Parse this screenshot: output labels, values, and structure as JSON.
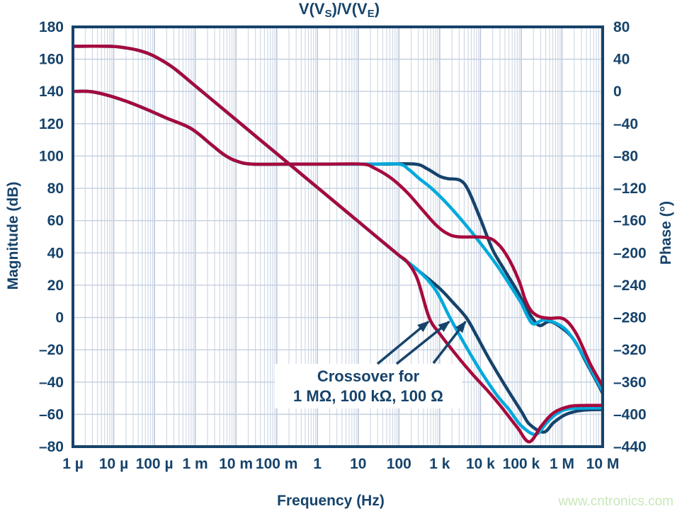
{
  "title": {
    "segments": [
      {
        "text": "V(V"
      },
      {
        "text": "S",
        "sub": true
      },
      {
        "text": ")/V(V"
      },
      {
        "text": "E",
        "sub": true
      },
      {
        "text": ")"
      }
    ]
  },
  "watermark": "www.cntronics.com",
  "colors": {
    "navy": "#16436B",
    "cyan": "#00A9DB",
    "crimson": "#A60A3D",
    "text": "#16436B",
    "grid_minor": "#CDD6E4",
    "grid_major": "#B9C6D9",
    "grid_horizontal": "#C4CFE0",
    "background": "#FFFFFF",
    "watermark_green": "#C9E7B9"
  },
  "axes": {
    "x": {
      "label": "Frequency (Hz)",
      "scale": "log",
      "log_range": [
        -6,
        7
      ],
      "ticks": [
        "1 µ",
        "10 µ",
        "100 µ",
        "1 m",
        "10 m",
        "100 m",
        "1",
        "10",
        "100",
        "1 k",
        "10 k",
        "100 k",
        "1 M",
        "10 M"
      ]
    },
    "y_left": {
      "label": "Magnitude (dB)",
      "range": [
        -80,
        180
      ],
      "step": 20,
      "ticks": [
        "180",
        "160",
        "140",
        "120",
        "100",
        "80",
        "60",
        "40",
        "20",
        "0",
        "–20",
        "–40",
        "–60",
        "–80"
      ]
    },
    "y_right": {
      "label": "Phase (°)",
      "range": [
        -440,
        80
      ],
      "step": 40,
      "ticks": [
        "80",
        "40",
        "0",
        "–40",
        "–80",
        "–120",
        "–160",
        "–200",
        "–240",
        "–280",
        "–320",
        "–360",
        "–400",
        "–440"
      ]
    }
  },
  "annotation": {
    "lines": [
      "Crossover for",
      "1 MΩ, 100 kΩ, 100 Ω"
    ]
  },
  "chart_data": {
    "type": "line",
    "title": "V(VS)/V(VE)",
    "x_unit": "log10 of frequency in Hz",
    "grid": true,
    "legend": false,
    "series": [
      {
        "name": "magnitude 100 Ω",
        "axis": "left",
        "color": "navy",
        "points": [
          [
            -6,
            168
          ],
          [
            -5.1,
            168
          ],
          [
            -4.7,
            167
          ],
          [
            -4.4,
            165.5
          ],
          [
            -4.1,
            163
          ],
          [
            -3.8,
            159
          ],
          [
            -3.5,
            154
          ],
          [
            -3,
            143.5
          ],
          [
            -2.5,
            133
          ],
          [
            -2,
            122.5
          ],
          [
            -1.5,
            112
          ],
          [
            -1,
            101.5
          ],
          [
            -0.5,
            91
          ],
          [
            0,
            80.5
          ],
          [
            0.5,
            70
          ],
          [
            1,
            59.5
          ],
          [
            1.5,
            49
          ],
          [
            2,
            38.5
          ],
          [
            2.5,
            28.5
          ],
          [
            3,
            18
          ],
          [
            3.3,
            10
          ],
          [
            3.65,
            0
          ],
          [
            3.9,
            -11
          ],
          [
            4.2,
            -25
          ],
          [
            4.6,
            -42
          ],
          [
            5,
            -58
          ],
          [
            5.2,
            -66
          ],
          [
            5.55,
            -71
          ],
          [
            5.8,
            -65
          ],
          [
            6.1,
            -60
          ],
          [
            6.5,
            -57.5
          ],
          [
            7,
            -57
          ]
        ]
      },
      {
        "name": "magnitude 100 kΩ",
        "axis": "left",
        "color": "cyan",
        "points": [
          [
            -6,
            168
          ],
          [
            -5.1,
            168
          ],
          [
            -4.7,
            167
          ],
          [
            -4.4,
            165.5
          ],
          [
            -4.1,
            163
          ],
          [
            -3.8,
            159
          ],
          [
            -3.5,
            154
          ],
          [
            -3,
            143.5
          ],
          [
            -2.5,
            133
          ],
          [
            -2,
            122.5
          ],
          [
            -1.5,
            112
          ],
          [
            -1,
            101.5
          ],
          [
            -0.5,
            91
          ],
          [
            0,
            80.5
          ],
          [
            0.5,
            70
          ],
          [
            1,
            59.5
          ],
          [
            1.5,
            49
          ],
          [
            2,
            38.5
          ],
          [
            2.5,
            28.5
          ],
          [
            2.9,
            17
          ],
          [
            3.25,
            0
          ],
          [
            3.6,
            -16
          ],
          [
            4,
            -33
          ],
          [
            4.4,
            -48
          ],
          [
            4.7,
            -57
          ],
          [
            5,
            -67
          ],
          [
            5.35,
            -72.5
          ],
          [
            5.6,
            -66
          ],
          [
            5.85,
            -60
          ],
          [
            6.2,
            -56.5
          ],
          [
            7,
            -56
          ]
        ]
      },
      {
        "name": "magnitude 1 MΩ",
        "axis": "left",
        "color": "crimson",
        "points": [
          [
            -6,
            168
          ],
          [
            -5.1,
            168
          ],
          [
            -4.7,
            167
          ],
          [
            -4.4,
            165.5
          ],
          [
            -4.1,
            163
          ],
          [
            -3.8,
            159
          ],
          [
            -3.5,
            154
          ],
          [
            -3,
            143.5
          ],
          [
            -2.5,
            133
          ],
          [
            -2,
            122.5
          ],
          [
            -1.5,
            112
          ],
          [
            -1,
            101.5
          ],
          [
            -0.5,
            91
          ],
          [
            0,
            80.5
          ],
          [
            0.5,
            70
          ],
          [
            1,
            59.5
          ],
          [
            1.5,
            49
          ],
          [
            2,
            38.5
          ],
          [
            2.2,
            34.5
          ],
          [
            2.45,
            24
          ],
          [
            2.74,
            0
          ],
          [
            3,
            -10
          ],
          [
            3.4,
            -23
          ],
          [
            3.8,
            -35
          ],
          [
            4.2,
            -46
          ],
          [
            4.5,
            -55
          ],
          [
            4.9,
            -68
          ],
          [
            5.2,
            -77
          ],
          [
            5.5,
            -67
          ],
          [
            5.8,
            -59
          ],
          [
            6.2,
            -55
          ],
          [
            6.6,
            -54.5
          ],
          [
            7,
            -54.5
          ]
        ]
      },
      {
        "name": "phase 100 Ω",
        "axis": "right",
        "color": "navy",
        "points": [
          [
            -6,
            0
          ],
          [
            -5.6,
            0
          ],
          [
            -5.2,
            -4
          ],
          [
            -4.7,
            -12
          ],
          [
            -4.2,
            -22
          ],
          [
            -3.7,
            -33
          ],
          [
            -3.1,
            -46
          ],
          [
            -2.6,
            -66
          ],
          [
            -2.3,
            -78
          ],
          [
            -2,
            -86
          ],
          [
            -1.6,
            -90
          ],
          [
            -0.5,
            -90
          ],
          [
            0.8,
            -90
          ],
          [
            1.6,
            -90
          ],
          [
            2.4,
            -90
          ],
          [
            2.7,
            -96
          ],
          [
            3,
            -105
          ],
          [
            3.2,
            -108
          ],
          [
            3.5,
            -110
          ],
          [
            3.7,
            -122
          ],
          [
            4,
            -158
          ],
          [
            4.3,
            -196
          ],
          [
            4.6,
            -222
          ],
          [
            4.9,
            -247
          ],
          [
            5.1,
            -266
          ],
          [
            5.25,
            -279
          ],
          [
            5.45,
            -290
          ],
          [
            5.7,
            -285
          ],
          [
            6,
            -293
          ],
          [
            6.3,
            -308
          ],
          [
            6.6,
            -336
          ],
          [
            6.9,
            -364
          ],
          [
            7,
            -374
          ]
        ]
      },
      {
        "name": "phase 100 kΩ",
        "axis": "right",
        "color": "cyan",
        "points": [
          [
            -6,
            0
          ],
          [
            -5.6,
            0
          ],
          [
            -5.2,
            -4
          ],
          [
            -4.7,
            -12
          ],
          [
            -4.2,
            -22
          ],
          [
            -3.7,
            -33
          ],
          [
            -3.1,
            -46
          ],
          [
            -2.6,
            -66
          ],
          [
            -2.3,
            -78
          ],
          [
            -2,
            -86
          ],
          [
            -1.6,
            -90
          ],
          [
            -0.6,
            -90
          ],
          [
            0.6,
            -90
          ],
          [
            1.3,
            -90
          ],
          [
            2,
            -90
          ],
          [
            2.25,
            -97
          ],
          [
            2.5,
            -108
          ],
          [
            2.8,
            -120
          ],
          [
            3.2,
            -140
          ],
          [
            3.6,
            -163
          ],
          [
            4,
            -188
          ],
          [
            4.4,
            -215
          ],
          [
            4.7,
            -238
          ],
          [
            5,
            -262
          ],
          [
            5.15,
            -278
          ],
          [
            5.3,
            -288
          ],
          [
            5.55,
            -283
          ],
          [
            5.85,
            -287
          ],
          [
            6.15,
            -298
          ],
          [
            6.5,
            -325
          ],
          [
            6.8,
            -353
          ],
          [
            7,
            -371
          ]
        ]
      },
      {
        "name": "phase 1 MΩ",
        "axis": "right",
        "color": "crimson",
        "points": [
          [
            -6,
            0
          ],
          [
            -5.6,
            0
          ],
          [
            -5.2,
            -4
          ],
          [
            -4.7,
            -12
          ],
          [
            -4.2,
            -22
          ],
          [
            -3.7,
            -33
          ],
          [
            -3.1,
            -46
          ],
          [
            -2.6,
            -66
          ],
          [
            -2.3,
            -78
          ],
          [
            -2,
            -86
          ],
          [
            -1.6,
            -90
          ],
          [
            -0.7,
            -90
          ],
          [
            0.2,
            -90
          ],
          [
            1.1,
            -90
          ],
          [
            1.4,
            -95
          ],
          [
            1.8,
            -107
          ],
          [
            2.2,
            -125
          ],
          [
            2.6,
            -148
          ],
          [
            2.9,
            -165
          ],
          [
            3.15,
            -175
          ],
          [
            3.45,
            -180
          ],
          [
            4.15,
            -181
          ],
          [
            4.45,
            -190
          ],
          [
            4.7,
            -208
          ],
          [
            4.95,
            -235
          ],
          [
            5.1,
            -258
          ],
          [
            5.25,
            -272
          ],
          [
            5.45,
            -279
          ],
          [
            5.7,
            -281
          ],
          [
            6.05,
            -282
          ],
          [
            6.35,
            -300
          ],
          [
            6.7,
            -338
          ],
          [
            7,
            -365
          ]
        ]
      }
    ],
    "crossovers": [
      {
        "label": "1 MΩ",
        "logf": 2.74,
        "mag_db": 0
      },
      {
        "label": "100 kΩ",
        "logf": 3.25,
        "mag_db": 0
      },
      {
        "label": "100 Ω",
        "logf": 3.65,
        "mag_db": 0
      }
    ]
  }
}
